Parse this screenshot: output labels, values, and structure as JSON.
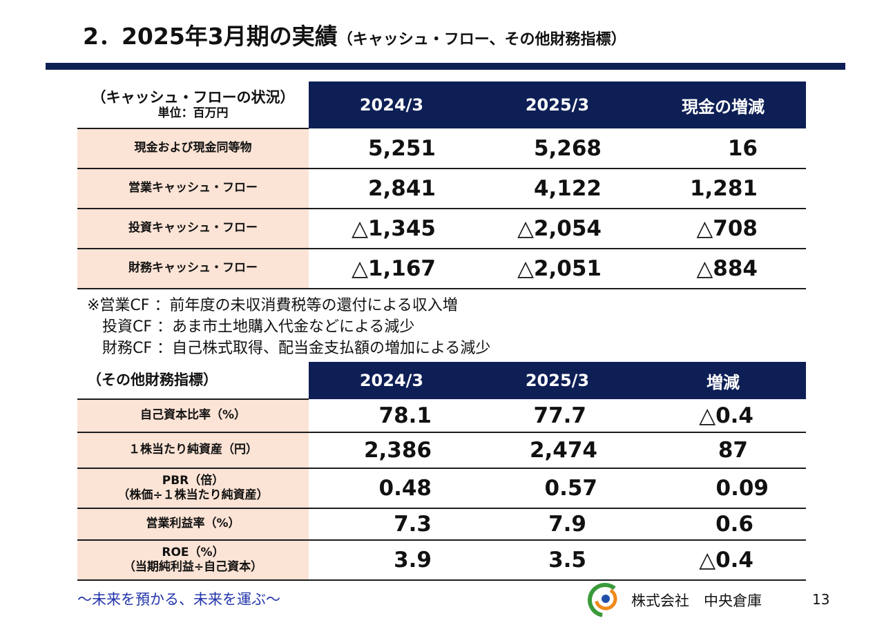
{
  "title": {
    "main": "2．2025年3月期の実績",
    "sub": "（キャッシュ・フロー、その他財務指標）"
  },
  "cashflow": {
    "heading": "（キャッシュ・フローの状況）",
    "unit": "単位：百万円",
    "columns": [
      "2024/3",
      "2025/3",
      "現金の増減"
    ],
    "rows": [
      {
        "label": "現金および現金同等物",
        "values": [
          "5,251",
          "5,268",
          "16"
        ]
      },
      {
        "label": "営業キャッシュ・フロー",
        "values": [
          "2,841",
          "4,122",
          "1,281"
        ]
      },
      {
        "label": "投資キャッシュ・フロー",
        "values": [
          "△1,345",
          "△2,054",
          "△708"
        ]
      },
      {
        "label": "財務キャッシュ・フロー",
        "values": [
          "△1,167",
          "△2,051",
          "△884"
        ]
      }
    ]
  },
  "notes": [
    "※営業CF ：前年度の未収消費税等の還付による収入増",
    "　投資CF ：あま市土地購入代金などによる減少",
    "　財務CF ：自己株式取得、配当金支払額の増加による減少"
  ],
  "indicators": {
    "heading": "（その他財務指標）",
    "columns": [
      "2024/3",
      "2025/3",
      "増減"
    ],
    "rows": [
      {
        "label": "自己資本比率（%）",
        "label2": "",
        "values": [
          "78.1",
          "77.7",
          "△0.4"
        ]
      },
      {
        "label": "１株当たり純資産（円）",
        "label2": "",
        "values": [
          "2,386",
          "2,474",
          "87"
        ]
      },
      {
        "label": "PBR（倍）",
        "label2": "（株価÷１株当たり純資産）",
        "values": [
          "0.48",
          "0.57",
          "0.09"
        ]
      },
      {
        "label": "営業利益率（%）",
        "label2": "",
        "values": [
          "7.3",
          "7.9",
          "0.6"
        ]
      },
      {
        "label": "ROE（%）",
        "label2": "（当期純利益÷自己資本）",
        "values": [
          "3.9",
          "3.5",
          "△0.4"
        ]
      }
    ]
  },
  "footer": {
    "tagline": "～未来を預かる、未来を運ぶ～",
    "company": "株式会社　中央倉庫",
    "page_number": "13"
  },
  "colors": {
    "navy": "#0e1f56",
    "label_bg": "#fbe3d5",
    "tagline": "#2233aa"
  }
}
